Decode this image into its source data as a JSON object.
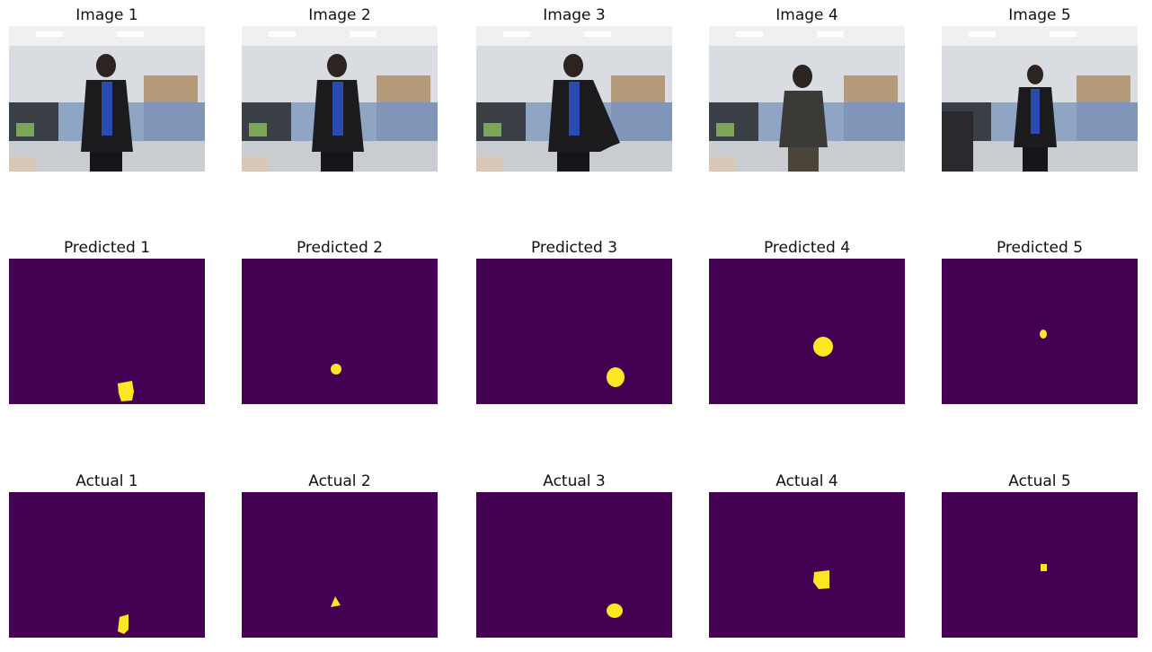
{
  "rows": [
    {
      "kind": "photo",
      "titles": [
        "Image 1",
        "Image 2",
        "Image 3",
        "Image 4",
        "Image 5"
      ]
    },
    {
      "kind": "mask",
      "titles": [
        "Predicted 1",
        "Predicted 2",
        "Predicted 3",
        "Predicted 4",
        "Predicted 5"
      ]
    },
    {
      "kind": "mask",
      "titles": [
        "Actual 1",
        "Actual 2",
        "Actual 3",
        "Actual 4",
        "Actual 5"
      ]
    }
  ],
  "colors": {
    "mask_background": "#440154",
    "mask_foreground": "#fde725"
  }
}
